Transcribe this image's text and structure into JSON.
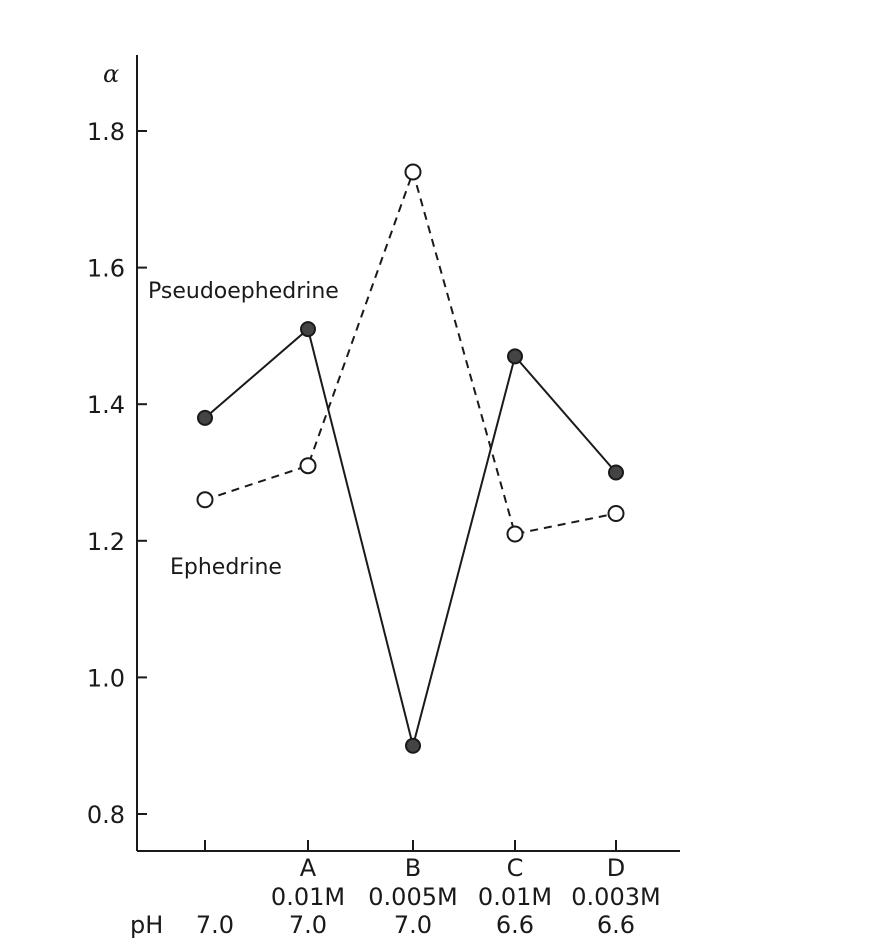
{
  "chart_data": {
    "type": "line",
    "title": "",
    "xlabel": "",
    "ylabel": "α",
    "ylim": [
      0.75,
      1.9
    ],
    "yticks": [
      0.8,
      1.0,
      1.2,
      1.4,
      1.6,
      1.8
    ],
    "ytick_labels": [
      "0.8",
      "1.0",
      "1.2",
      "1.4",
      "1.6",
      "1.8"
    ],
    "grid": false,
    "legend": "none",
    "row_label": "pH",
    "categories": [
      {
        "letter": "",
        "concentration": "",
        "ph": "7.0"
      },
      {
        "letter": "A",
        "concentration": "0.01M",
        "ph": "7.0"
      },
      {
        "letter": "B",
        "concentration": "0.005M",
        "ph": "7.0"
      },
      {
        "letter": "C",
        "concentration": "0.01M",
        "ph": "6.6"
      },
      {
        "letter": "D",
        "concentration": "0.003M",
        "ph": "6.6"
      }
    ],
    "series": [
      {
        "name": "Pseudoephedrine",
        "marker": "filled-circle",
        "line_style": "solid",
        "values": [
          1.38,
          1.51,
          0.9,
          1.47,
          1.3
        ]
      },
      {
        "name": "Ephedrine",
        "marker": "open-circle",
        "line_style": "dashed",
        "values": [
          1.26,
          1.31,
          1.74,
          1.21,
          1.24
        ]
      }
    ],
    "colors": {
      "ink": "#1a1a1a",
      "filled_marker": "#444444",
      "open_marker_fill": "#ffffff"
    }
  }
}
